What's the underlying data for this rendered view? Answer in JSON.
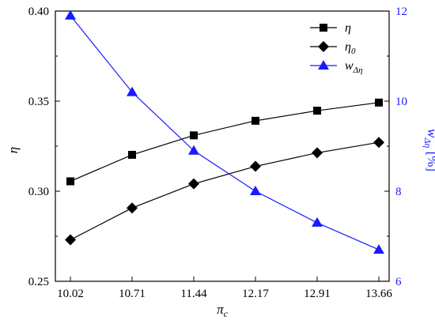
{
  "chart_data": {
    "type": "line",
    "x": [
      10.02,
      10.71,
      11.44,
      12.17,
      12.91,
      13.66
    ],
    "x_tick_labels": [
      "10.02",
      "10.71",
      "11.44",
      "12.17",
      "12.91",
      "13.66"
    ],
    "xlabel": {
      "base": "π",
      "sub": "c"
    },
    "ylabel_left": {
      "base": "η",
      "sub": ""
    },
    "ylabel_right": {
      "base": "w",
      "sub": "Δη",
      "unit": " [%]"
    },
    "ylim_left": [
      0.25,
      0.4
    ],
    "yticks_left": [
      "0.25",
      "0.30",
      "0.35",
      "0.40"
    ],
    "ylim_right": [
      6,
      12
    ],
    "yticks_right": [
      "6",
      "8",
      "10",
      "12"
    ],
    "grid": false,
    "legend_position": "top-right",
    "series": [
      {
        "name": {
          "base": "η",
          "sub": ""
        },
        "axis": "left",
        "marker": "square",
        "color": "#000000",
        "values": [
          0.3055,
          0.3202,
          0.331,
          0.3391,
          0.3447,
          0.3492
        ]
      },
      {
        "name": {
          "base": "η",
          "sub": "0"
        },
        "axis": "left",
        "marker": "diamond",
        "color": "#000000",
        "values": [
          0.273,
          0.2907,
          0.3041,
          0.3138,
          0.3213,
          0.3271
        ]
      },
      {
        "name": {
          "base": "w",
          "sub": "Δη"
        },
        "axis": "right",
        "marker": "triangle",
        "color": "#1a1aff",
        "values": [
          11.9,
          10.2,
          8.9,
          8.0,
          7.3,
          6.7
        ]
      }
    ]
  }
}
